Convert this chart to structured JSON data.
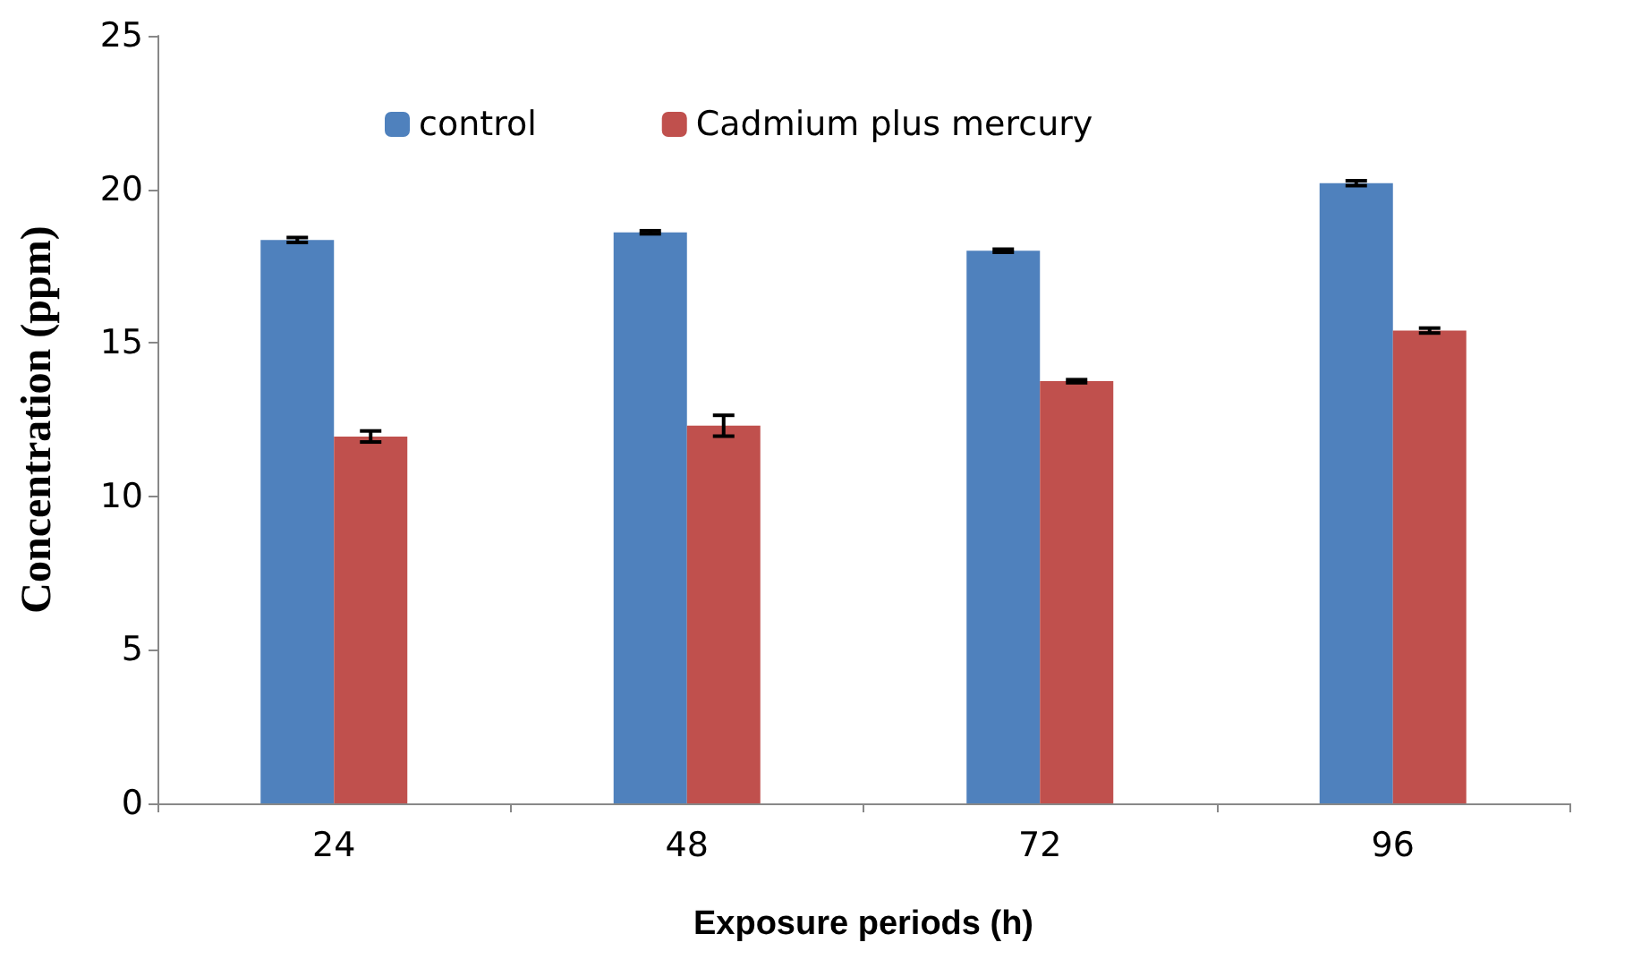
{
  "chart_data": {
    "type": "bar",
    "xlabel": "Exposure periods (h)",
    "ylabel": "Concentration (ppm)",
    "categories": [
      "24",
      "48",
      "72",
      "96"
    ],
    "series": [
      {
        "name": "control",
        "color": "#4f81bd",
        "values": [
          18.35,
          18.6,
          18.0,
          20.2
        ],
        "errors": [
          0.08,
          0.05,
          0.05,
          0.08
        ]
      },
      {
        "name": "Cadmium plus mercury",
        "color": "#c0504d",
        "values": [
          11.95,
          12.3,
          13.75,
          15.4
        ],
        "errors": [
          0.18,
          0.34,
          0.05,
          0.08
        ]
      }
    ],
    "ylim": [
      0,
      25
    ],
    "yticks": [
      0,
      5,
      10,
      15,
      20,
      25
    ],
    "grid": false,
    "legend": "top"
  }
}
